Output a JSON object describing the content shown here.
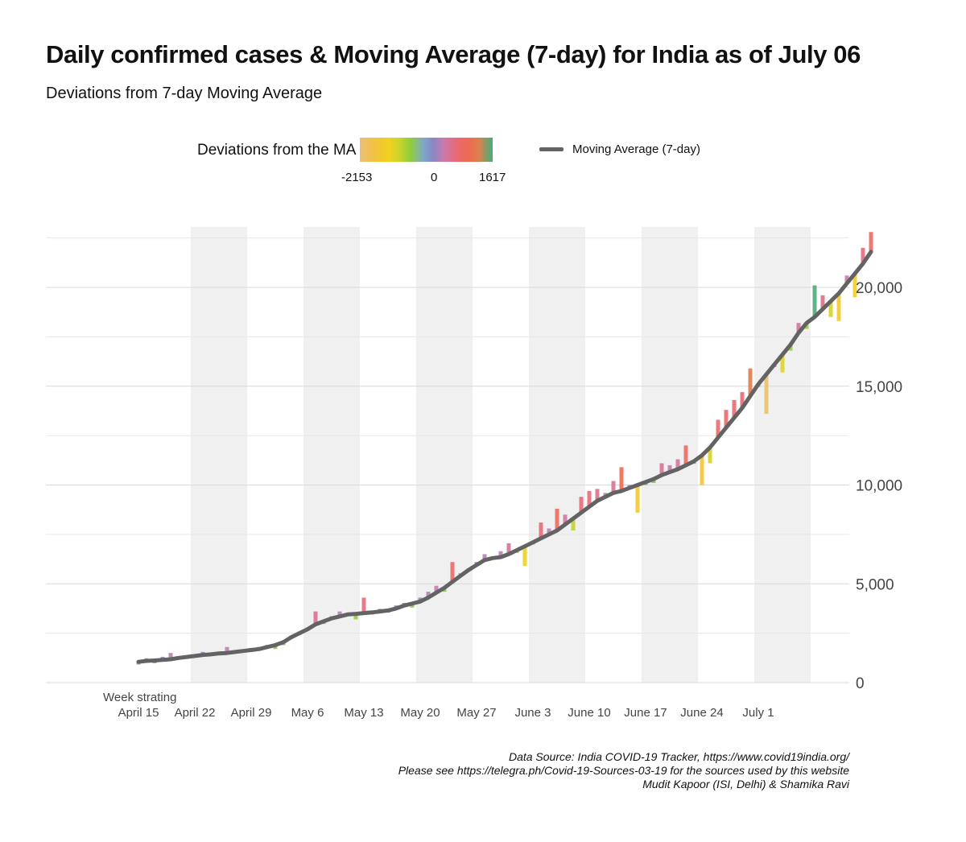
{
  "header": {
    "title": "Daily confirmed cases & Moving Average (7-day) for India as of July 06",
    "subtitle": "Deviations from 7-day Moving Average"
  },
  "legend": {
    "fill_title": "Deviations from the MA",
    "fill_ticks": [
      "-2153",
      "0",
      "1617"
    ],
    "line_label": "Moving Average (7-day)"
  },
  "chart_data": {
    "type": "bar",
    "title": "Daily confirmed cases & Moving Average (7-day) for India as of July 06",
    "subtitle": "Deviations from 7-day Moving Average",
    "xlabel": "Week strating",
    "ylabel": "",
    "ylim": [
      0,
      22800
    ],
    "y_ticks": [
      0,
      5000,
      10000,
      15000,
      20000
    ],
    "y_tick_labels": [
      "0",
      "5,000",
      "10,000",
      "15,000",
      "20,000"
    ],
    "x_tick_labels": [
      "April 15",
      "April 22",
      "April 29",
      "May 6",
      "May 13",
      "May 20",
      "May 27",
      "June 3",
      "June 10",
      "June 17",
      "June 24",
      "July 1"
    ],
    "fill_range": [
      -2153,
      1617
    ],
    "shaded_weeks": [
      "April 22",
      "May 6",
      "May 20",
      "June 3",
      "June 17",
      "July 1"
    ],
    "start_date": "April 15",
    "series": [
      {
        "name": "Moving Average (7-day)",
        "kind": "line",
        "color": "#636363",
        "values": [
          1050,
          1100,
          1120,
          1150,
          1180,
          1250,
          1300,
          1350,
          1400,
          1430,
          1480,
          1500,
          1550,
          1600,
          1650,
          1700,
          1800,
          1900,
          2050,
          2300,
          2500,
          2700,
          2950,
          3100,
          3250,
          3350,
          3450,
          3480,
          3520,
          3550,
          3600,
          3650,
          3750,
          3900,
          4000,
          4100,
          4300,
          4550,
          4800,
          5100,
          5400,
          5700,
          5950,
          6200,
          6300,
          6350,
          6500,
          6700,
          6900,
          7100,
          7300,
          7500,
          7700,
          8000,
          8300,
          8600,
          8900,
          9200,
          9400,
          9600,
          9700,
          9850,
          10000,
          10150,
          10300,
          10500,
          10650,
          10800,
          11000,
          11200,
          11500,
          11900,
          12400,
          12900,
          13400,
          13900,
          14500,
          15100,
          15600,
          16100,
          16600,
          17100,
          17700,
          18200,
          18500,
          18900,
          19300,
          19700,
          20200,
          20700,
          21200,
          21800
        ]
      },
      {
        "name": "Daily confirmed cases",
        "kind": "bar",
        "values": [
          950,
          1200,
          1000,
          1300,
          1500,
          1250,
          1300,
          1350,
          1550,
          1450,
          1500,
          1800,
          1550,
          1600,
          1700,
          1750,
          1850,
          1700,
          1900,
          2300,
          2500,
          2700,
          3600,
          3000,
          3300,
          3600,
          3450,
          3200,
          4300,
          3500,
          3700,
          3600,
          3900,
          4000,
          3800,
          4300,
          4600,
          4900,
          4600,
          6100,
          5500,
          5700,
          6100,
          6500,
          6300,
          6650,
          7050,
          6600,
          5900,
          7050,
          8100,
          7800,
          8800,
          8500,
          7700,
          9400,
          9700,
          9800,
          9600,
          10200,
          10900,
          10000,
          8600,
          10000,
          10100,
          11100,
          11000,
          11300,
          12000,
          11100,
          10000,
          11100,
          13300,
          13800,
          14300,
          14700,
          15900,
          15000,
          13600,
          16000,
          15700,
          16800,
          18200,
          17900,
          20100,
          19600,
          18500,
          18300,
          20600,
          19500,
          22000,
          22800
        ]
      }
    ]
  },
  "source": {
    "line1": "Data Source: India COVID-19 Tracker, https://www.covid19india.org/",
    "line2": "Please see https://telegra.ph/Covid-19-Sources-03-19 for the sources used by this website",
    "line3": "Mudit Kapoor (ISI, Delhi) & Shamika Ravi"
  }
}
